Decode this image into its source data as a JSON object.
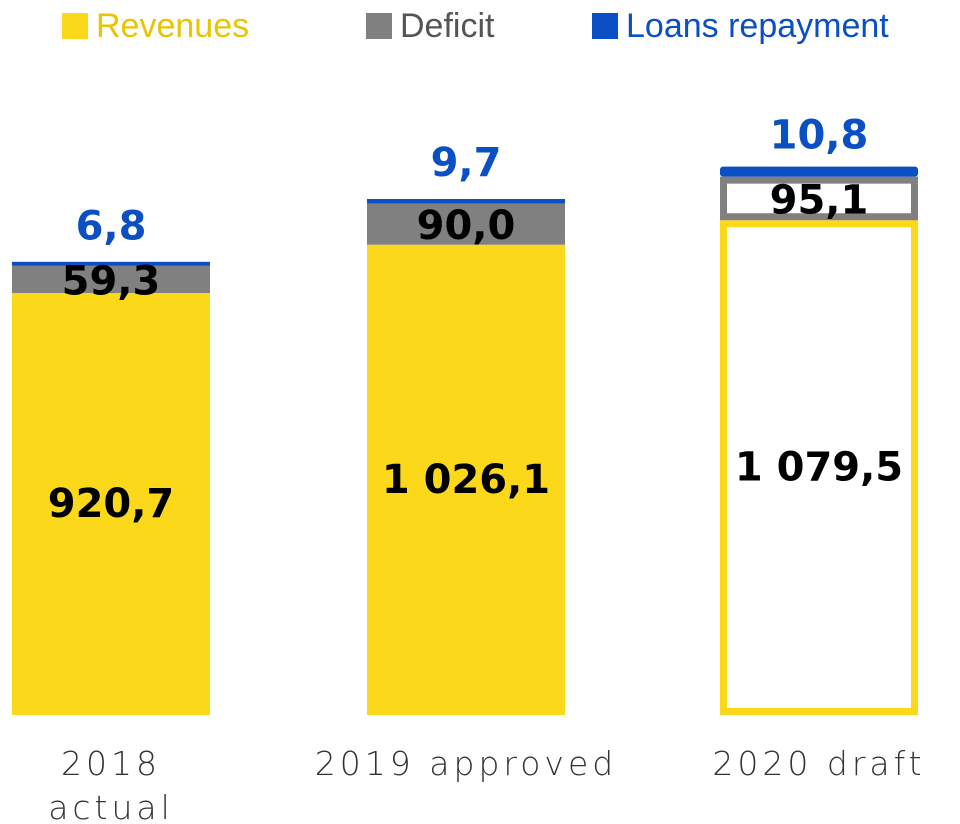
{
  "chart_data": {
    "type": "stacked_bar",
    "categories": [
      "2018 actual",
      "2019 approved",
      "2020 draft"
    ],
    "series": [
      {
        "name": "Revenues",
        "color": "#fcd81a",
        "values": [
          920.7,
          1026.1,
          1079.5
        ],
        "value_labels": [
          "920,7",
          "1 026,1",
          "1 079,5"
        ]
      },
      {
        "name": "Deficit",
        "color": "#808080",
        "values": [
          59.3,
          90.0,
          95.1
        ],
        "value_labels": [
          "59,3",
          "90,0",
          "95,1"
        ]
      },
      {
        "name": "Loans repayment",
        "color": "#0a4fc4",
        "values": [
          6.8,
          9.7,
          10.8
        ],
        "value_labels": [
          "6,8",
          "9,7",
          "10,8"
        ]
      }
    ],
    "ylim": [
      0,
      1200
    ],
    "outlined": [
      false,
      false,
      true
    ],
    "legend": "top"
  }
}
